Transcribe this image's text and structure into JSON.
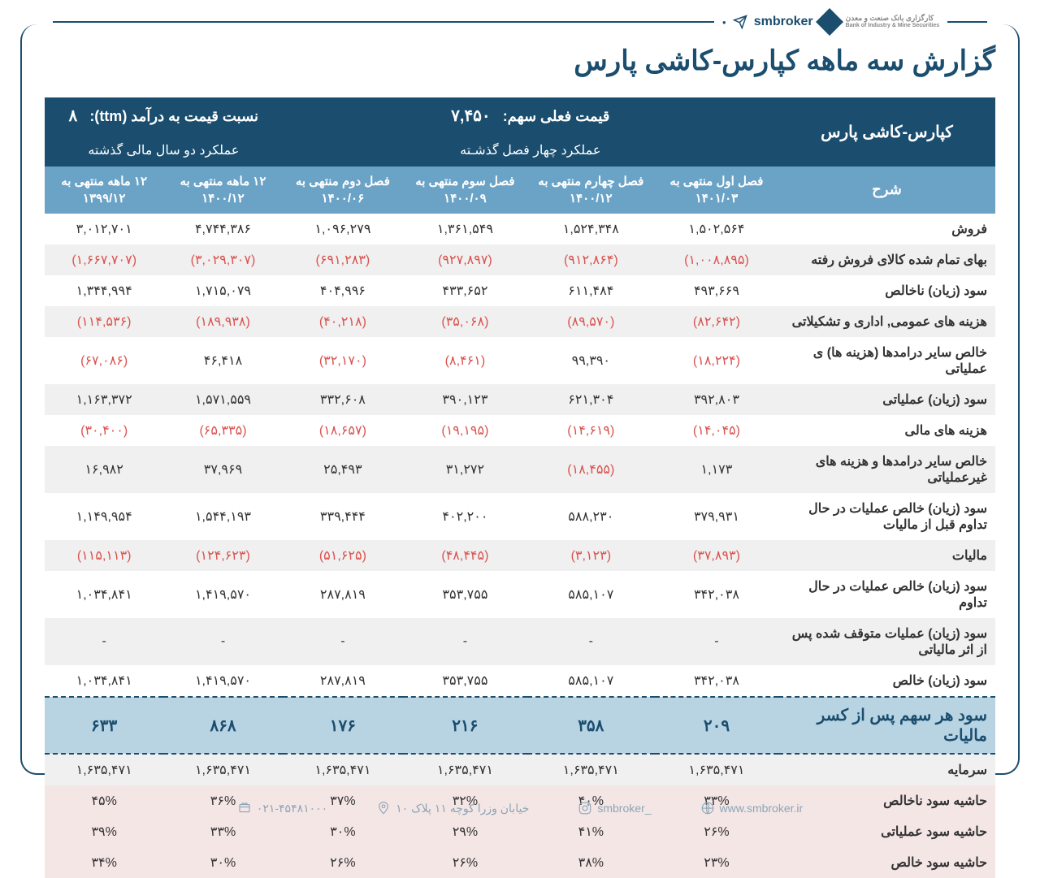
{
  "header": {
    "brand": "smbroker",
    "logo_sub_fa": "کارگزاری بانک صنعت و معدن",
    "logo_sub_en": "Bank of Industry & Mine Securities"
  },
  "title": "گزارش سه ماهه کپارس-کاشی پارس",
  "top": {
    "company": "کپارس-کاشی پارس",
    "price_label": "قیمت فعلی سهم:",
    "price_value": "۷,۴۵۰",
    "q_header": "عملکرد چهار فصل گذشـته",
    "ttm_label": "نسبت  قیمت به درآمد (ttm):",
    "ttm_value": "۸",
    "y_header": "عملکرد دو سال مالی گذشته"
  },
  "cols": {
    "desc": "شرح",
    "q1": "فصل اول منتهی به ۱۴۰۱/۰۳",
    "q2": "فصل چهارم منتهی به ۱۴۰۰/۱۲",
    "q3": "فصل سوم منتهی به ۱۴۰۰/۰۹",
    "q4": "فصل دوم منتهی به ۱۴۰۰/۰۶",
    "y1": "۱۲ ماهه منتهی به ۱۴۰۰/۱۲",
    "y2": "۱۲ ماهه منتهی به ۱۳۹۹/۱۲"
  },
  "rows": [
    {
      "label": "فروش",
      "stripe": false,
      "v": [
        "۱,۵۰۲,۵۶۴",
        "۱,۵۲۴,۳۴۸",
        "۱,۳۶۱,۵۴۹",
        "۱,۰۹۶,۲۷۹",
        "۴,۷۴۴,۳۸۶",
        "۳,۰۱۲,۷۰۱"
      ],
      "neg": [
        false,
        false,
        false,
        false,
        false,
        false
      ]
    },
    {
      "label": "بهای تمام شده کالای فروش رفته",
      "stripe": true,
      "v": [
        "(۱,۰۰۸,۸۹۵)",
        "(۹۱۲,۸۶۴)",
        "(۹۲۷,۸۹۷)",
        "(۶۹۱,۲۸۳)",
        "(۳,۰۲۹,۳۰۷)",
        "(۱,۶۶۷,۷۰۷)"
      ],
      "neg": [
        true,
        true,
        true,
        true,
        true,
        true
      ]
    },
    {
      "label": "سود (زیان) ناخالص",
      "stripe": false,
      "v": [
        "۴۹۳,۶۶۹",
        "۶۱۱,۴۸۴",
        "۴۳۳,۶۵۲",
        "۴۰۴,۹۹۶",
        "۱,۷۱۵,۰۷۹",
        "۱,۳۴۴,۹۹۴"
      ],
      "neg": [
        false,
        false,
        false,
        false,
        false,
        false
      ]
    },
    {
      "label": "هزینه های عمومی, اداری و تشکیلاتی",
      "stripe": true,
      "v": [
        "(۸۲,۶۴۲)",
        "(۸۹,۵۷۰)",
        "(۳۵,۰۶۸)",
        "(۴۰,۲۱۸)",
        "(۱۸۹,۹۳۸)",
        "(۱۱۴,۵۳۶)"
      ],
      "neg": [
        true,
        true,
        true,
        true,
        true,
        true
      ]
    },
    {
      "label": "خالص سایر درامدها (هزینه ها) ی عملیاتی",
      "stripe": false,
      "v": [
        "(۱۸,۲۲۴)",
        "۹۹,۳۹۰",
        "(۸,۴۶۱)",
        "(۳۲,۱۷۰)",
        "۴۶,۴۱۸",
        "(۶۷,۰۸۶)"
      ],
      "neg": [
        true,
        false,
        true,
        true,
        false,
        true
      ]
    },
    {
      "label": "سود (زیان) عملیاتی",
      "stripe": true,
      "v": [
        "۳۹۲,۸۰۳",
        "۶۲۱,۳۰۴",
        "۳۹۰,۱۲۳",
        "۳۳۲,۶۰۸",
        "۱,۵۷۱,۵۵۹",
        "۱,۱۶۳,۳۷۲"
      ],
      "neg": [
        false,
        false,
        false,
        false,
        false,
        false
      ]
    },
    {
      "label": "هزینه های مالی",
      "stripe": false,
      "v": [
        "(۱۴,۰۴۵)",
        "(۱۴,۶۱۹)",
        "(۱۹,۱۹۵)",
        "(۱۸,۶۵۷)",
        "(۶۵,۳۳۵)",
        "(۳۰,۴۰۰)"
      ],
      "neg": [
        true,
        true,
        true,
        true,
        true,
        true
      ]
    },
    {
      "label": "خالص سایر درامدها و هزینه های غیرعملیاتی",
      "stripe": true,
      "v": [
        "۱,۱۷۳",
        "(۱۸,۴۵۵)",
        "۳۱,۲۷۲",
        "۲۵,۴۹۳",
        "۳۷,۹۶۹",
        "۱۶,۹۸۲"
      ],
      "neg": [
        false,
        true,
        false,
        false,
        false,
        false
      ]
    },
    {
      "label": "سود (زیان) خالص عملیات در حال تداوم قبل از مالیات",
      "stripe": false,
      "v": [
        "۳۷۹,۹۳۱",
        "۵۸۸,۲۳۰",
        "۴۰۲,۲۰۰",
        "۳۳۹,۴۴۴",
        "۱,۵۴۴,۱۹۳",
        "۱,۱۴۹,۹۵۴"
      ],
      "neg": [
        false,
        false,
        false,
        false,
        false,
        false
      ]
    },
    {
      "label": "مالیات",
      "stripe": true,
      "v": [
        "(۳۷,۸۹۳)",
        "(۳,۱۲۳)",
        "(۴۸,۴۴۵)",
        "(۵۱,۶۲۵)",
        "(۱۲۴,۶۲۳)",
        "(۱۱۵,۱۱۳)"
      ],
      "neg": [
        true,
        true,
        true,
        true,
        true,
        true
      ]
    },
    {
      "label": "سود (زیان) خالص عملیات در حال تداوم",
      "stripe": false,
      "v": [
        "۳۴۲,۰۳۸",
        "۵۸۵,۱۰۷",
        "۳۵۳,۷۵۵",
        "۲۸۷,۸۱۹",
        "۱,۴۱۹,۵۷۰",
        "۱,۰۳۴,۸۴۱"
      ],
      "neg": [
        false,
        false,
        false,
        false,
        false,
        false
      ]
    },
    {
      "label": "سود (زیان) عملیات متوقف شده پس از اثر مالیاتی",
      "stripe": true,
      "v": [
        "-",
        "-",
        "-",
        "-",
        "-",
        "-"
      ],
      "neg": [
        false,
        false,
        false,
        false,
        false,
        false
      ]
    },
    {
      "label": "سود (زیان) خالص",
      "stripe": false,
      "v": [
        "۳۴۲,۰۳۸",
        "۵۸۵,۱۰۷",
        "۳۵۳,۷۵۵",
        "۲۸۷,۸۱۹",
        "۱,۴۱۹,۵۷۰",
        "۱,۰۳۴,۸۴۱"
      ],
      "neg": [
        false,
        false,
        false,
        false,
        false,
        false
      ]
    }
  ],
  "eps": {
    "label": "سود هر سهم پس از کسر مالیات",
    "v": [
      "۲۰۹",
      "۳۵۸",
      "۲۱۶",
      "۱۷۶",
      "۸۶۸",
      "۶۳۳"
    ]
  },
  "capital": {
    "label": "سرمایه",
    "v": [
      "۱,۶۳۵,۴۷۱",
      "۱,۶۳۵,۴۷۱",
      "۱,۶۳۵,۴۷۱",
      "۱,۶۳۵,۴۷۱",
      "۱,۶۳۵,۴۷۱",
      "۱,۶۳۵,۴۷۱"
    ]
  },
  "margins": [
    {
      "label": "حاشیه سود ناخالص",
      "v": [
        "۳۳%",
        "۴۰%",
        "۳۲%",
        "۳۷%",
        "۳۶%",
        "۴۵%"
      ]
    },
    {
      "label": "حاشیه سود عملیاتی",
      "v": [
        "۲۶%",
        "۴۱%",
        "۲۹%",
        "۳۰%",
        "۳۳%",
        "۳۹%"
      ]
    },
    {
      "label": "حاشیه سود خالص",
      "v": [
        "۲۳%",
        "۳۸%",
        "۲۶%",
        "۲۶%",
        "۳۰%",
        "۳۴%"
      ]
    }
  ],
  "footer": {
    "web": "www.smbroker.ir",
    "ig": "smbroker_",
    "addr": "خیابان وزرا کوچه ۱۱ پلاک ۱۰",
    "tel": "۰۲۱-۴۵۴۸۱۰۰۰"
  },
  "colors": {
    "primary": "#1a4d6e",
    "header2": "#6ba3c7",
    "eps_bg": "#b8d4e3",
    "stripe": "#f0f0f0",
    "margin_bg": "#f5e6e6",
    "neg": "#d9534f"
  }
}
